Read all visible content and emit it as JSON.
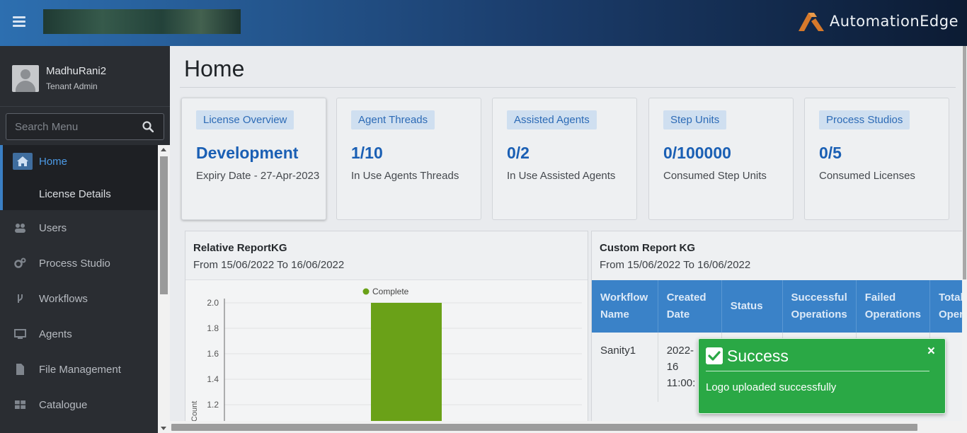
{
  "header": {
    "brand": "AutomationEdge",
    "colors": {
      "accent": "#2d6fb0",
      "brand_orange": "#d6792b"
    }
  },
  "sidebar": {
    "user": {
      "name": "MadhuRani2",
      "role": "Tenant Admin"
    },
    "search": {
      "placeholder": "Search Menu"
    },
    "items": [
      {
        "label": "Home",
        "icon": "home-icon",
        "active": true
      },
      {
        "label": "License Details",
        "icon": "",
        "sub": true
      },
      {
        "label": "Users",
        "icon": "users-icon"
      },
      {
        "label": "Process Studio",
        "icon": "gears-icon"
      },
      {
        "label": "Workflows",
        "icon": "branch-icon"
      },
      {
        "label": "Agents",
        "icon": "monitor-icon"
      },
      {
        "label": "File Management",
        "icon": "file-icon"
      },
      {
        "label": "Catalogue",
        "icon": "grid-icon"
      }
    ]
  },
  "main": {
    "title": "Home",
    "cards": [
      {
        "badge": "License Overview",
        "value": "Development",
        "desc": "Expiry Date - 27-Apr-2023"
      },
      {
        "badge": "Agent Threads",
        "value": "1/10",
        "desc": "In Use Agents Threads"
      },
      {
        "badge": "Assisted Agents",
        "value": "0/2",
        "desc": "In Use Assisted Agents"
      },
      {
        "badge": "Step Units",
        "value": "0/100000",
        "desc": "Consumed Step Units"
      },
      {
        "badge": "Process Studios",
        "value": "0/5",
        "desc": "Consumed Licenses"
      }
    ],
    "relative_report": {
      "title": "Relative ReportKG",
      "subtitle": "From 15/06/2022 To 16/06/2022"
    },
    "custom_report": {
      "title": "Custom Report KG",
      "subtitle": "From 15/06/2022 To 16/06/2022",
      "columns": [
        "Workflow Name",
        "Created Date",
        "Status",
        "Successful Operations",
        "Failed Operations",
        "Total Oper"
      ],
      "rows": [
        [
          "Sanity1",
          "2022-\n16\n11:00:",
          "",
          "",
          "",
          ""
        ]
      ]
    }
  },
  "chart_data": {
    "type": "bar",
    "categories": [
      ""
    ],
    "series": [
      {
        "name": "Complete",
        "values": [
          2.0
        ],
        "color": "#6aa118"
      }
    ],
    "ylabel": "Count",
    "yticks": [
      "2.0",
      "1.8",
      "1.6",
      "1.4",
      "1.2"
    ],
    "ylim": [
      1.2,
      2.0
    ],
    "legend": "top"
  },
  "toast": {
    "title": "Success",
    "message": "Logo uploaded successfully",
    "close": "×",
    "color": "#2aa845"
  }
}
